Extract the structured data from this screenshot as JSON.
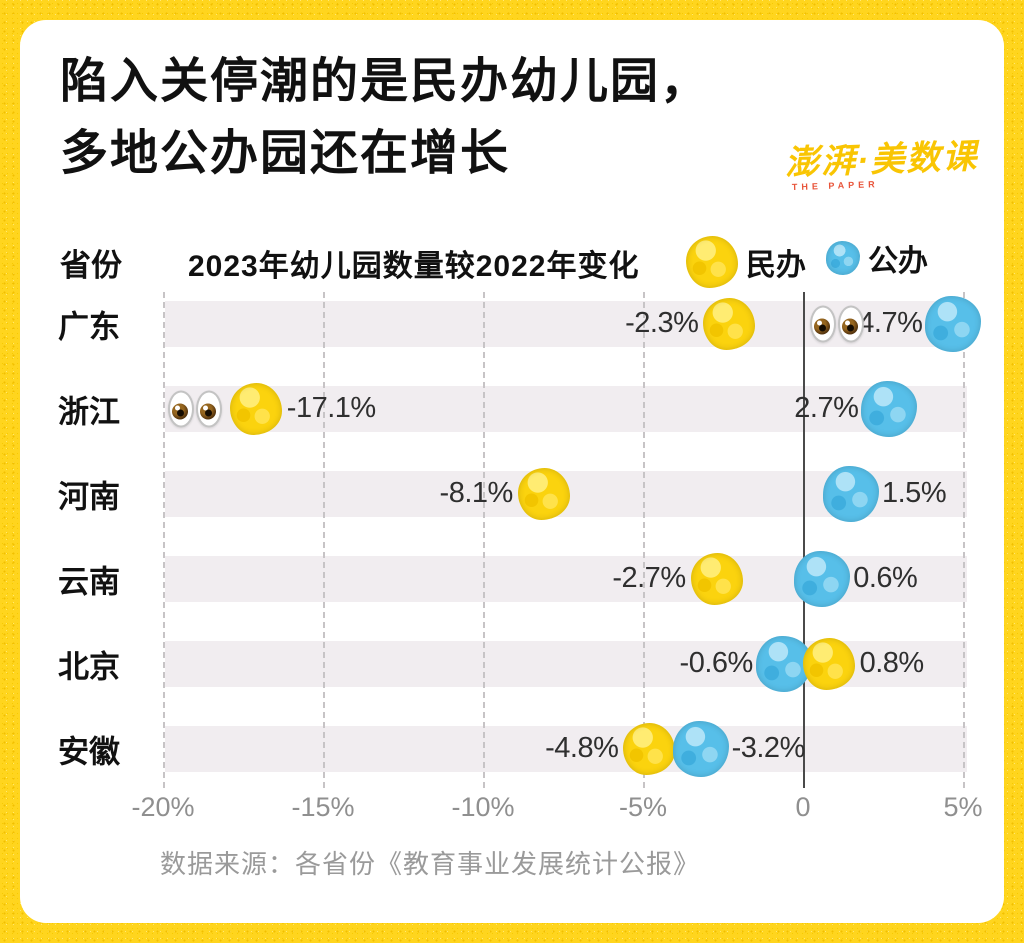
{
  "title": {
    "line1": "陷入关停潮的是民办幼儿园，",
    "line2": "多地公办园还在增长"
  },
  "logo": {
    "text": "澎湃·美数课",
    "sub": "THE PAPER"
  },
  "header": {
    "province_label": "省份",
    "subtitle": "2023年幼儿园数量较2022年变化"
  },
  "source": "数据来源：各省份《教育事业发展统计公报》",
  "chart_data": {
    "type": "scatter",
    "title": "2023年幼儿园数量较2022年变化",
    "unit": "%",
    "grid": "dashed-vertical",
    "legend_position": "top-right",
    "x_axis": {
      "min": -20,
      "max": 5,
      "ticks": [
        {
          "value": -20,
          "label": "-20%"
        },
        {
          "value": -15,
          "label": "-15%"
        },
        {
          "value": -10,
          "label": "-10%"
        },
        {
          "value": -5,
          "label": "-5%"
        },
        {
          "value": 0,
          "label": "0"
        },
        {
          "value": 5,
          "label": "5%"
        }
      ]
    },
    "series": {
      "private": {
        "label": "民办",
        "color": "#FBD30E"
      },
      "public": {
        "label": "公办",
        "color": "#57BFE9"
      }
    },
    "rows": [
      {
        "province": "广东",
        "eyes_at": 1.05,
        "dots": [
          {
            "series": "private",
            "value": -2.3,
            "label": "-2.3%",
            "label_side": "left"
          },
          {
            "series": "public",
            "value": 4.7,
            "label": "4.7%",
            "label_side": "left"
          }
        ]
      },
      {
        "province": "浙江",
        "eyes_at": -19.0,
        "dots": [
          {
            "series": "private",
            "value": -17.1,
            "label": "-17.1%",
            "label_side": "right"
          },
          {
            "series": "public",
            "value": 2.7,
            "label": "2.7%",
            "label_side": "left"
          }
        ]
      },
      {
        "province": "河南",
        "eyes_at": null,
        "dots": [
          {
            "series": "private",
            "value": -8.1,
            "label": "-8.1%",
            "label_side": "left"
          },
          {
            "series": "public",
            "value": 1.5,
            "label": "1.5%",
            "label_side": "right"
          }
        ]
      },
      {
        "province": "云南",
        "eyes_at": null,
        "dots": [
          {
            "series": "private",
            "value": -2.7,
            "label": "-2.7%",
            "label_side": "left"
          },
          {
            "series": "public",
            "value": 0.6,
            "label": "0.6%",
            "label_side": "right"
          }
        ]
      },
      {
        "province": "北京",
        "eyes_at": null,
        "dots": [
          {
            "series": "public",
            "value": -0.6,
            "label": "-0.6%",
            "label_side": "left"
          },
          {
            "series": "private",
            "value": 0.8,
            "label": "0.8%",
            "label_side": "right"
          }
        ]
      },
      {
        "province": "安徽",
        "eyes_at": null,
        "dots": [
          {
            "series": "private",
            "value": -4.8,
            "label": "-4.8%",
            "label_side": "left"
          },
          {
            "series": "public",
            "value": -3.2,
            "label": "-3.2%",
            "label_side": "right"
          }
        ]
      }
    ]
  }
}
